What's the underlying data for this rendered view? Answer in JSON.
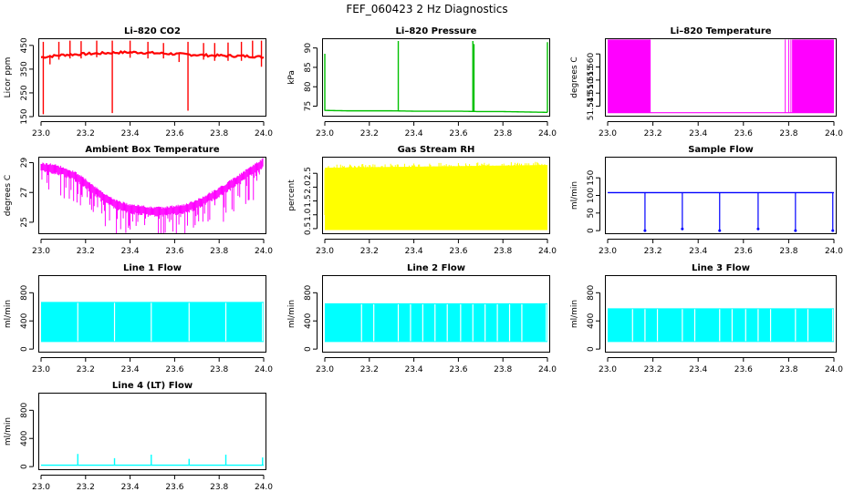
{
  "page": {
    "title": "FEF_060423  2 Hz Diagnostics"
  },
  "chart_data": [
    {
      "type": "line",
      "title": "Li–820 CO2",
      "xlabel": "",
      "ylabel": "Licor ppm",
      "xlim": [
        23.0,
        24.0
      ],
      "ylim": [
        150,
        480
      ],
      "xticks": [
        "23.0",
        "23.2",
        "23.4",
        "23.6",
        "23.8",
        "24.0"
      ],
      "yticks": [
        {
          "v": 150,
          "t": "150"
        },
        {
          "v": 250,
          "t": "250"
        },
        {
          "v": 350,
          "t": "350"
        },
        {
          "v": 450,
          "t": "450"
        }
      ],
      "color": "#ff0000",
      "series": [
        {
          "x": [
            23.0,
            23.05,
            23.1,
            23.15,
            23.2,
            23.25,
            23.3,
            23.35,
            23.4,
            23.45,
            23.5,
            23.55,
            23.6,
            23.65,
            23.7,
            23.75,
            23.8,
            23.85,
            23.9,
            23.95,
            24.0
          ],
          "values": [
            400,
            405,
            410,
            412,
            414,
            416,
            418,
            420,
            421,
            420,
            418,
            416,
            414,
            412,
            410,
            408,
            407,
            406,
            405,
            404,
            400
          ]
        }
      ],
      "spikes": [
        {
          "x": 23.01,
          "lo": 160,
          "hi": 465
        },
        {
          "x": 23.04,
          "lo": 370,
          "hi": 410
        },
        {
          "x": 23.08,
          "lo": 390,
          "hi": 465
        },
        {
          "x": 23.13,
          "lo": 395,
          "hi": 470
        },
        {
          "x": 23.18,
          "lo": 395,
          "hi": 468
        },
        {
          "x": 23.25,
          "lo": 400,
          "hi": 470
        },
        {
          "x": 23.32,
          "lo": 165,
          "hi": 470
        },
        {
          "x": 23.4,
          "lo": 398,
          "hi": 470
        },
        {
          "x": 23.48,
          "lo": 395,
          "hi": 465
        },
        {
          "x": 23.55,
          "lo": 395,
          "hi": 460
        },
        {
          "x": 23.62,
          "lo": 380,
          "hi": 415
        },
        {
          "x": 23.66,
          "lo": 175,
          "hi": 465
        },
        {
          "x": 23.73,
          "lo": 390,
          "hi": 460
        },
        {
          "x": 23.78,
          "lo": 385,
          "hi": 460
        },
        {
          "x": 23.84,
          "lo": 385,
          "hi": 462
        },
        {
          "x": 23.9,
          "lo": 385,
          "hi": 465
        },
        {
          "x": 23.95,
          "lo": 395,
          "hi": 470
        },
        {
          "x": 23.99,
          "lo": 360,
          "hi": 470
        }
      ]
    },
    {
      "type": "line",
      "title": "Li–820 Pressure",
      "xlabel": "",
      "ylabel": "kPa",
      "xlim": [
        23.0,
        24.0
      ],
      "ylim": [
        72.3,
        92.5
      ],
      "xticks": [
        "23.0",
        "23.2",
        "23.4",
        "23.6",
        "23.8",
        "24.0"
      ],
      "yticks": [
        {
          "v": 75,
          "t": "75"
        },
        {
          "v": 80,
          "t": "80"
        },
        {
          "v": 85,
          "t": "85"
        },
        {
          "v": 90,
          "t": "90"
        }
      ],
      "color": "#00c000",
      "series": [
        {
          "x": [
            23.0,
            23.1,
            23.2,
            23.3,
            23.4,
            23.5,
            23.6,
            23.7,
            23.8,
            23.9,
            24.0
          ],
          "values": [
            73.9,
            73.8,
            73.8,
            73.8,
            73.7,
            73.7,
            73.7,
            73.6,
            73.6,
            73.5,
            73.4
          ]
        }
      ],
      "spikes": [
        {
          "x": 23.0,
          "lo": 73.8,
          "hi": 88.5
        },
        {
          "x": 23.33,
          "lo": 73.8,
          "hi": 91.8
        },
        {
          "x": 23.665,
          "lo": 73.7,
          "hi": 91.8
        },
        {
          "x": 23.67,
          "lo": 73.7,
          "hi": 91.0
        },
        {
          "x": 24.0,
          "lo": 73.4,
          "hi": 91.5
        }
      ]
    },
    {
      "type": "line",
      "title": "Li–820 Temperature",
      "xlabel": "",
      "ylabel": "degrees C",
      "xlim": [
        23.0,
        24.0
      ],
      "ylim": [
        51.541,
        51.571
      ],
      "xticks": [
        "23.0",
        "23.2",
        "23.4",
        "23.6",
        "23.8",
        "24.0"
      ],
      "yticks": [
        {
          "v": 51.545,
          "t": "51.545"
        },
        {
          "v": 51.55,
          "t": "51.550"
        },
        {
          "v": 51.555,
          "t": "51.555"
        },
        {
          "v": 51.56,
          "t": "51.560"
        },
        {
          "v": 51.565,
          "t": ""
        }
      ],
      "color": "#ff00ff",
      "low": 51.5425,
      "high": 51.5705,
      "bands": [
        [
          23.0,
          23.19
        ],
        [
          23.815,
          24.0
        ]
      ],
      "lines": [
        23.785,
        23.8,
        23.81,
        23.83,
        23.85,
        23.87
      ],
      "span": [
        23.0,
        24.0
      ]
    },
    {
      "type": "line",
      "title": "Ambient Box Temperature",
      "xlabel": "",
      "ylabel": "degrees C",
      "xlim": [
        23.0,
        24.0
      ],
      "ylim": [
        24.2,
        29.4
      ],
      "xticks": [
        "23.0",
        "23.2",
        "23.4",
        "23.6",
        "23.8",
        "24.0"
      ],
      "yticks": [
        {
          "v": 25,
          "t": "25"
        },
        {
          "v": 27,
          "t": "27"
        },
        {
          "v": 29,
          "t": "29"
        }
      ],
      "color": "#ff00ff",
      "series": [
        {
          "x": [
            23.0,
            23.05,
            23.1,
            23.15,
            23.2,
            23.25,
            23.3,
            23.35,
            23.4,
            23.45,
            23.5,
            23.55,
            23.6,
            23.65,
            23.7,
            23.75,
            23.8,
            23.85,
            23.9,
            23.95,
            24.0
          ],
          "values": [
            28.7,
            28.6,
            28.4,
            28.1,
            27.6,
            27.0,
            26.5,
            26.1,
            25.9,
            25.8,
            25.7,
            25.7,
            25.8,
            25.9,
            26.2,
            26.6,
            27.0,
            27.5,
            28.0,
            28.5,
            29.0
          ]
        }
      ],
      "band": 0.35,
      "dips": 2.0
    },
    {
      "type": "area",
      "title": "Gas Stream RH",
      "xlabel": "",
      "ylabel": "percent",
      "xlim": [
        23.0,
        24.0
      ],
      "ylim": [
        0.3,
        3.1
      ],
      "xticks": [
        "23.0",
        "23.2",
        "23.4",
        "23.6",
        "23.8",
        "24.0"
      ],
      "yticks": [
        {
          "v": 0.5,
          "t": "0.5"
        },
        {
          "v": 1.0,
          "t": "1.0"
        },
        {
          "v": 1.5,
          "t": "1.5"
        },
        {
          "v": 2.0,
          "t": "2.0"
        },
        {
          "v": 2.5,
          "t": "2.5"
        }
      ],
      "color": "#ffff00",
      "series": [
        {
          "x": [
            23.0,
            24.0
          ],
          "values": [
            2.7,
            2.8
          ]
        }
      ],
      "lower": 0.45
    },
    {
      "type": "line",
      "title": "Sample Flow",
      "xlabel": "",
      "ylabel": "ml/min",
      "xlim": [
        23.0,
        24.0
      ],
      "ylim": [
        -10,
        210
      ],
      "xticks": [
        "23.0",
        "23.2",
        "23.4",
        "23.6",
        "23.8",
        "24.0"
      ],
      "yticks": [
        {
          "v": 0,
          "t": "0"
        },
        {
          "v": 50,
          "t": "50"
        },
        {
          "v": 100,
          "t": "100"
        },
        {
          "v": 150,
          "t": "150"
        }
      ],
      "color": "#0000ff",
      "series": [
        {
          "x": [
            23.0,
            24.0
          ],
          "values": [
            108,
            108
          ]
        }
      ],
      "drops": [
        {
          "x": 23.165,
          "lo": 0
        },
        {
          "x": 23.33,
          "lo": 5
        },
        {
          "x": 23.495,
          "lo": 0
        },
        {
          "x": 23.665,
          "lo": 5
        },
        {
          "x": 23.83,
          "lo": 0
        },
        {
          "x": 23.995,
          "lo": 0
        }
      ]
    },
    {
      "type": "area",
      "title": "Line 1 Flow",
      "xlabel": "",
      "ylabel": "ml/min",
      "xlim": [
        23.0,
        24.0
      ],
      "ylim": [
        -50,
        1050
      ],
      "xticks": [
        "23.0",
        "23.2",
        "23.4",
        "23.6",
        "23.8",
        "24.0"
      ],
      "yticks": [
        {
          "v": 0,
          "t": "0"
        },
        {
          "v": 400,
          "t": "400"
        },
        {
          "v": 800,
          "t": "800"
        }
      ],
      "color": "#00ffff",
      "series": [
        {
          "x": [
            23.0,
            24.0
          ],
          "values": [
            670,
            670
          ]
        }
      ],
      "lower": 100,
      "gaps": [
        23.165,
        23.33,
        23.495,
        23.665,
        23.83,
        23.995
      ]
    },
    {
      "type": "area",
      "title": "Line 2 Flow",
      "xlabel": "",
      "ylabel": "ml/min",
      "xlim": [
        23.0,
        24.0
      ],
      "ylim": [
        -50,
        1050
      ],
      "xticks": [
        "23.0",
        "23.2",
        "23.4",
        "23.6",
        "23.8",
        "24.0"
      ],
      "yticks": [
        {
          "v": 0,
          "t": "0"
        },
        {
          "v": 400,
          "t": "400"
        },
        {
          "v": 800,
          "t": "800"
        }
      ],
      "color": "#00ffff",
      "series": [
        {
          "x": [
            23.0,
            24.0
          ],
          "values": [
            650,
            650
          ]
        }
      ],
      "lower": 100,
      "gaps": [
        23.165,
        23.22,
        23.33,
        23.385,
        23.44,
        23.495,
        23.55,
        23.61,
        23.665,
        23.72,
        23.775,
        23.83,
        23.885,
        23.995
      ]
    },
    {
      "type": "area",
      "title": "Line 3 Flow",
      "xlabel": "",
      "ylabel": "ml/min",
      "xlim": [
        23.0,
        24.0
      ],
      "ylim": [
        -50,
        1050
      ],
      "xticks": [
        "23.0",
        "23.2",
        "23.4",
        "23.6",
        "23.8",
        "24.0"
      ],
      "yticks": [
        {
          "v": 0,
          "t": "0"
        },
        {
          "v": 400,
          "t": "400"
        },
        {
          "v": 800,
          "t": "800"
        }
      ],
      "color": "#00ffff",
      "series": [
        {
          "x": [
            23.0,
            24.0
          ],
          "values": [
            580,
            580
          ]
        }
      ],
      "lower": 100,
      "gaps": [
        23.11,
        23.165,
        23.22,
        23.33,
        23.385,
        23.495,
        23.55,
        23.61,
        23.665,
        23.72,
        23.83,
        23.885,
        23.995
      ]
    },
    {
      "type": "line",
      "title": "Line 4 (LT) Flow",
      "xlabel": "",
      "ylabel": "ml/min",
      "xlim": [
        23.0,
        24.0
      ],
      "ylim": [
        -50,
        1050
      ],
      "xticks": [
        "23.0",
        "23.2",
        "23.4",
        "23.6",
        "23.8",
        "24.0"
      ],
      "yticks": [
        {
          "v": 0,
          "t": "0"
        },
        {
          "v": 400,
          "t": "400"
        },
        {
          "v": 800,
          "t": "800"
        }
      ],
      "color": "#00ffff",
      "series": [
        {
          "x": [
            23.0,
            24.0
          ],
          "values": [
            20,
            20
          ]
        }
      ],
      "spikes": [
        {
          "x": 23.165,
          "lo": 20,
          "hi": 180
        },
        {
          "x": 23.33,
          "lo": 20,
          "hi": 120
        },
        {
          "x": 23.495,
          "lo": 20,
          "hi": 170
        },
        {
          "x": 23.665,
          "lo": 20,
          "hi": 110
        },
        {
          "x": 23.83,
          "lo": 20,
          "hi": 170
        },
        {
          "x": 23.995,
          "lo": 20,
          "hi": 130
        }
      ]
    }
  ]
}
